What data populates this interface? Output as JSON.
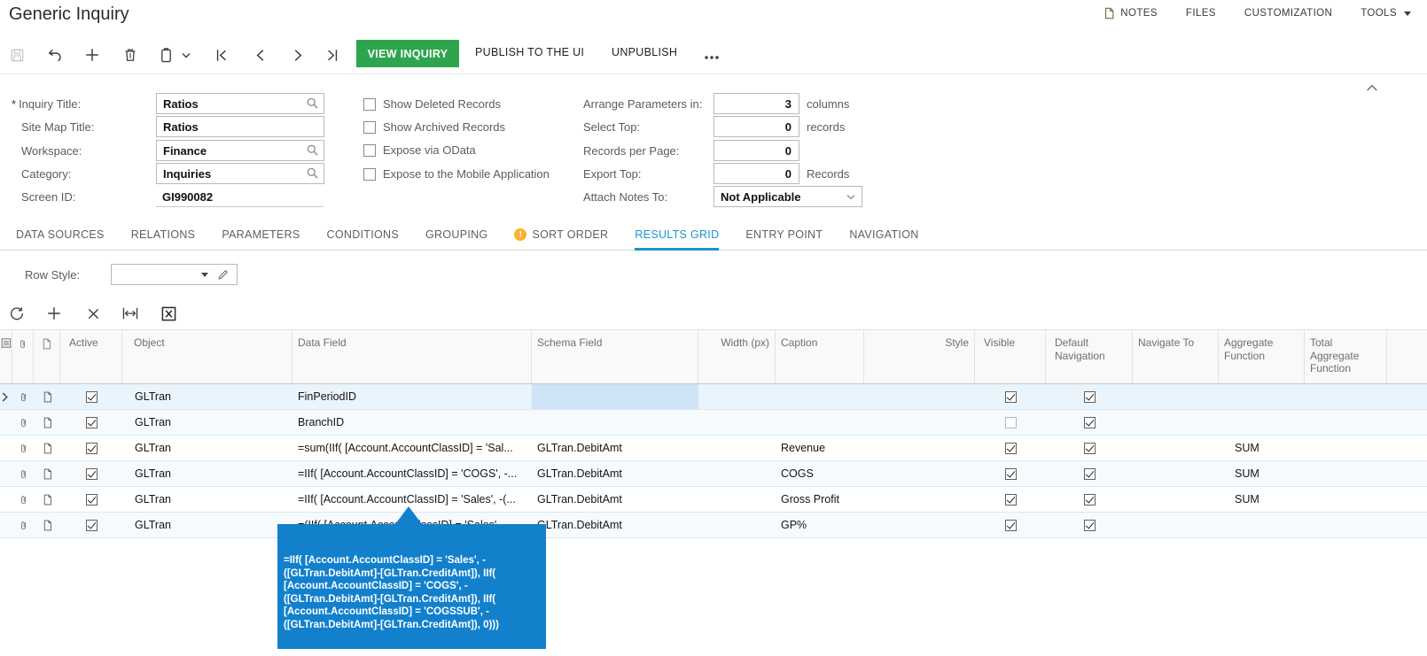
{
  "window_title": "Generic Inquiry",
  "header": {
    "links": [
      {
        "label": "NOTES"
      },
      {
        "label": "FILES"
      },
      {
        "label": "CUSTOMIZATION"
      },
      {
        "label": "TOOLS"
      }
    ]
  },
  "toolbar": {
    "view_inquiry": "VIEW INQUIRY",
    "publish": "PUBLISH TO THE UI",
    "unpublish": "UNPUBLISH"
  },
  "form": {
    "required_marker": "*",
    "fields": [
      {
        "label": "Inquiry Title:",
        "value": "Ratios",
        "required": true,
        "lookup": true
      },
      {
        "label": "Site Map Title:",
        "value": "Ratios",
        "required": false,
        "lookup": false
      },
      {
        "label": "Workspace:",
        "value": "Finance",
        "required": false,
        "lookup": true
      },
      {
        "label": "Category:",
        "value": "Inquiries",
        "required": false,
        "lookup": true
      },
      {
        "label": "Screen ID:",
        "value": "GI990082",
        "required": false,
        "readonly": true
      }
    ],
    "checkboxes": [
      {
        "label": "Show Deleted Records",
        "checked": false
      },
      {
        "label": "Show Archived Records",
        "checked": false
      },
      {
        "label": "Expose via OData",
        "checked": false
      },
      {
        "label": "Expose to the Mobile Application",
        "checked": false
      }
    ],
    "options": [
      {
        "label": "Arrange Parameters in:",
        "value": "3",
        "suffix": "columns"
      },
      {
        "label": "Select Top:",
        "value": "0",
        "suffix": "records"
      },
      {
        "label": "Records per Page:",
        "value": "0",
        "suffix": ""
      },
      {
        "label": "Export Top:",
        "value": "0",
        "suffix": "Records"
      },
      {
        "label": "Attach Notes To:",
        "value": "Not Applicable",
        "suffix": ""
      }
    ]
  },
  "tabs": [
    {
      "label": "DATA SOURCES"
    },
    {
      "label": "RELATIONS"
    },
    {
      "label": "PARAMETERS"
    },
    {
      "label": "CONDITIONS"
    },
    {
      "label": "GROUPING"
    },
    {
      "label": "SORT ORDER",
      "warning": true
    },
    {
      "label": "RESULTS GRID",
      "active": true
    },
    {
      "label": "ENTRY POINT"
    },
    {
      "label": "NAVIGATION"
    }
  ],
  "results_grid": {
    "row_style_label": "Row Style:",
    "row_style_value": "",
    "columns": [
      "Active",
      "Object",
      "Data Field",
      "Schema Field",
      "Width (px)",
      "Caption",
      "Style",
      "Visible",
      "Default Navigation",
      "Navigate To",
      "Aggregate Function",
      "Total Aggregate Function"
    ],
    "rows": [
      {
        "selected": true,
        "active": true,
        "object": "GLTran",
        "data_field": "FinPeriodID",
        "schema_field": "",
        "caption": "",
        "visible": true,
        "default_navigation": true,
        "aggregate": ""
      },
      {
        "selected": false,
        "active": true,
        "object": "GLTran",
        "data_field": "BranchID",
        "schema_field": "",
        "caption": "",
        "visible": false,
        "default_navigation": true,
        "aggregate": ""
      },
      {
        "selected": false,
        "active": true,
        "object": "GLTran",
        "data_field": "=sum(IIf( [Account.AccountClassID] = 'Sal...",
        "schema_field": "GLTran.DebitAmt",
        "caption": "Revenue",
        "visible": true,
        "default_navigation": true,
        "aggregate": "SUM"
      },
      {
        "selected": false,
        "active": true,
        "object": "GLTran",
        "data_field": "=IIf( [Account.AccountClassID] = 'COGS', -...",
        "schema_field": "GLTran.DebitAmt",
        "caption": "COGS",
        "visible": true,
        "default_navigation": true,
        "aggregate": "SUM"
      },
      {
        "selected": false,
        "active": true,
        "object": "GLTran",
        "data_field": "=IIf( [Account.AccountClassID] = 'Sales', -(...",
        "schema_field": "GLTran.DebitAmt",
        "caption": "Gross Profit",
        "visible": true,
        "default_navigation": true,
        "aggregate": "SUM"
      },
      {
        "selected": false,
        "active": true,
        "object": "GLTran",
        "data_field": "=(IIf( [Account.AccountClassID] = 'Sales'",
        "schema_field": "GLTran.DebitAmt",
        "caption": "GP%",
        "visible": true,
        "default_navigation": true,
        "aggregate": ""
      }
    ]
  },
  "tooltip": {
    "text": "=IIf( [Account.AccountClassID] = 'Sales', -\n([GLTran.DebitAmt]-[GLTran.CreditAmt]), IIf(\n[Account.AccountClassID] = 'COGS', -\n([GLTran.DebitAmt]-[GLTran.CreditAmt]), IIf(\n[Account.AccountClassID] = 'COGSSUB', -\n([GLTran.DebitAmt]-[GLTran.CreditAmt]), 0)))"
  },
  "icons": {
    "warning_glyph": "!",
    "notes-icon": "page-outline",
    "save-icon": "floppy",
    "undo-icon": "undo-arrow",
    "add-icon": "plus",
    "delete-icon": "trash",
    "copy-icon": "clipboard",
    "first-icon": "bar-chevron-left",
    "prev-icon": "chevron-left",
    "next-icon": "chevron-right",
    "last-icon": "chevron-bar-right",
    "overflow-icon": "ellipsis",
    "lookup-icon": "magnifier",
    "edit-icon": "pencil",
    "refresh-icon": "circular-arrow",
    "remove-icon": "x",
    "fit-width-icon": "double-arrow",
    "export-icon": "boxed-x",
    "attachment-icon": "paperclip",
    "file-icon": "document",
    "collapse-icon": "chevron-up"
  },
  "colors": {
    "accent_green": "#2EA44E",
    "accent_blue": "#1B93D0",
    "tooltip_blue": "#1380CC",
    "warning_orange": "#FFB02E",
    "selected_row": "#EAF4FD",
    "selected_cell": "#CFE3F6"
  }
}
